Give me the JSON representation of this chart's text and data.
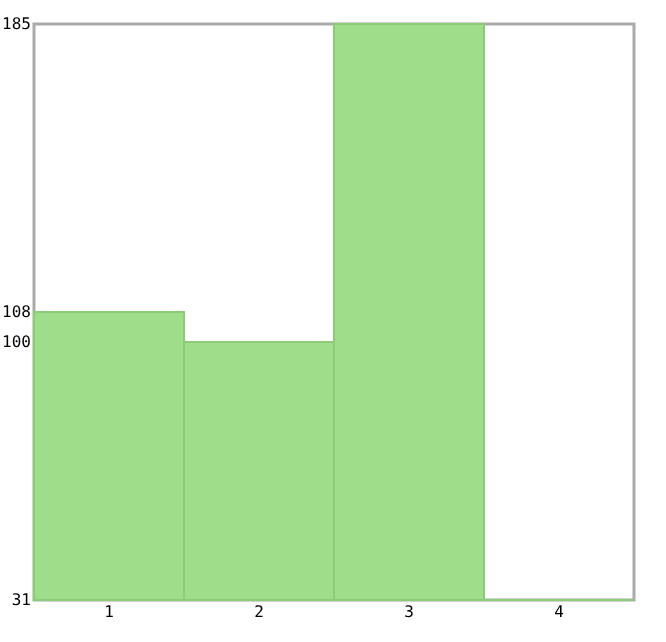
{
  "chart_data": {
    "type": "bar",
    "categories": [
      "1",
      "2",
      "3",
      "4"
    ],
    "values": [
      108,
      100,
      185,
      31
    ],
    "color": "#9fdd8a",
    "ylim": [
      31,
      185
    ],
    "yticks": [
      31,
      100,
      108,
      185
    ],
    "grid": false
  }
}
